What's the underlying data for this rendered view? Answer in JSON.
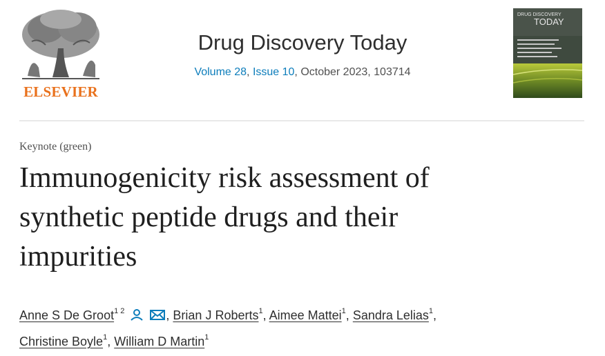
{
  "publisher": {
    "name": "ELSEVIER"
  },
  "journal": {
    "title": "Drug Discovery Today",
    "volume": "Volume 28",
    "issue": "Issue 10",
    "date_id": ", October 2023, 103714",
    "cover_title_line1": "DRUG DISCOVERY",
    "cover_title_line2": "TODAY"
  },
  "article": {
    "type": "Keynote (green)",
    "title_line1": "Immunogenicity risk assessment of",
    "title_line2": "synthetic peptide drugs and their",
    "title_line3": "impurities"
  },
  "authors": [
    {
      "name": "Anne S De Groot",
      "affil": "1 2"
    },
    {
      "name": "Brian J Roberts",
      "affil": "1"
    },
    {
      "name": "Aimee Mattei",
      "affil": "1"
    },
    {
      "name": "Sandra Lelias",
      "affil": "1"
    },
    {
      "name": "Christine Boyle",
      "affil": "1"
    },
    {
      "name": "William D Martin",
      "affil": "1"
    }
  ],
  "colors": {
    "brand": "#e9711c",
    "link": "#0c7dbb",
    "cover_dark": "#3f4a3f"
  },
  "icons": [
    "person-icon",
    "envelope-icon"
  ]
}
